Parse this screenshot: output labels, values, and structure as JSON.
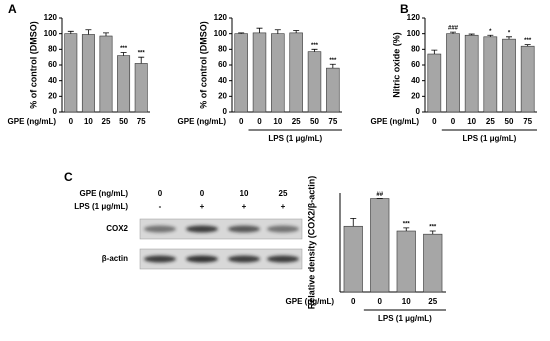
{
  "panel_labels": [
    "A",
    "B",
    "C"
  ],
  "chart_data": [
    {
      "type": "bar",
      "ylabel": "% of control (DMSO)",
      "xlabel": "GPE (ng/mL)",
      "categories": [
        "0",
        "10",
        "25",
        "50",
        "75"
      ],
      "values": [
        100,
        99,
        97,
        72,
        62
      ],
      "errors": [
        3,
        6,
        4,
        4,
        8
      ],
      "annotations": [
        null,
        null,
        null,
        "***",
        "***"
      ],
      "color": "#a6a6a6",
      "ylim": [
        0,
        120
      ],
      "yticks": [
        0,
        20,
        40,
        60,
        80,
        100,
        120
      ]
    },
    {
      "type": "bar",
      "ylabel": "% of control (DMSO)",
      "xlabel": "GPE (ng/mL)",
      "group_label": "LPS (1 μg/mL)",
      "categories": [
        "0",
        "0",
        "10",
        "25",
        "50",
        "75"
      ],
      "values": [
        100,
        101,
        100,
        101,
        77,
        56
      ],
      "errors": [
        1,
        6,
        5,
        3,
        3,
        5
      ],
      "annotations": [
        null,
        null,
        null,
        null,
        "***",
        "***"
      ],
      "color": "#a6a6a6",
      "ylim": [
        0,
        120
      ],
      "yticks": [
        0,
        20,
        40,
        60,
        80,
        100,
        120
      ]
    },
    {
      "type": "bar",
      "ylabel": "Nitric oxide (%)",
      "xlabel": "GPE (ng/mL)",
      "group_label": "LPS (1 μg/mL)",
      "categories": [
        "0",
        "0",
        "10",
        "25",
        "50",
        "75"
      ],
      "values": [
        74,
        100,
        98,
        96,
        93,
        84
      ],
      "errors": [
        5,
        2,
        1.5,
        2,
        3,
        2
      ],
      "annotations": [
        null,
        "###",
        null,
        "*",
        "*",
        "***"
      ],
      "color": "#a6a6a6",
      "ylim": [
        0,
        120
      ],
      "yticks": [
        0,
        20,
        40,
        60,
        80,
        100,
        120
      ]
    },
    {
      "type": "bar",
      "ylabel": "Relative density (COX2/β-actin)",
      "xlabel": "GPE (ng/mL)",
      "group_label": "LPS (1 μg/mL)",
      "categories": [
        "0",
        "0",
        "10",
        "25"
      ],
      "values": [
        0.83,
        1.18,
        0.77,
        0.73
      ],
      "errors": [
        0.1,
        0,
        0.04,
        0.04
      ],
      "annotations": [
        null,
        "##",
        "***",
        "***"
      ],
      "color": "#a6a6a6",
      "ylim": [
        0,
        1.25
      ]
    }
  ],
  "blot": {
    "rows": [
      {
        "label": "GPE (ng/mL)",
        "values": [
          "0",
          "0",
          "10",
          "25"
        ]
      },
      {
        "label": "LPS (1 μg/mL)",
        "values": [
          "-",
          "+",
          "+",
          "+"
        ]
      }
    ],
    "bands": [
      "COX2",
      "β-actin"
    ]
  }
}
